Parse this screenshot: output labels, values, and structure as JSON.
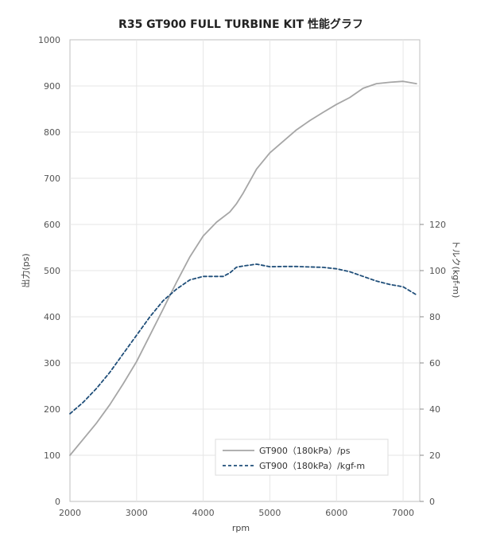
{
  "chart_data": {
    "type": "line",
    "title": "R35 GT900 FULL TURBINE KIT 性能グラフ",
    "xlabel": "rpm",
    "ylabel_left": "出力(ps)",
    "ylabel_right": "トルク(kgf-m)",
    "xlim": [
      2000,
      7250
    ],
    "ylim_left": [
      0,
      1000
    ],
    "ylim_right": [
      0,
      200
    ],
    "x_ticks": [
      "2000",
      "3000",
      "4000",
      "5000",
      "6000",
      "7000"
    ],
    "y_ticks_left": [
      "0",
      "100",
      "200",
      "300",
      "400",
      "500",
      "600",
      "700",
      "800",
      "900",
      "1000"
    ],
    "y_ticks_right": [
      "0",
      "20",
      "40",
      "60",
      "80",
      "100",
      "120"
    ],
    "grid": true,
    "legend_position": "bottom-right",
    "series": [
      {
        "name": "GT900（180kPa）/ps",
        "axis": "left",
        "color": "#a6a6a6",
        "style": "solid",
        "x": [
          2000,
          2200,
          2400,
          2600,
          2800,
          3000,
          3200,
          3400,
          3600,
          3800,
          4000,
          4200,
          4400,
          4500,
          4600,
          4800,
          5000,
          5200,
          5400,
          5600,
          5800,
          6000,
          6200,
          6400,
          6600,
          6800,
          7000,
          7200
        ],
        "values": [
          100,
          135,
          170,
          210,
          255,
          303,
          360,
          417,
          475,
          530,
          575,
          605,
          627,
          645,
          668,
          720,
          755,
          780,
          805,
          825,
          843,
          860,
          875,
          895,
          905,
          908,
          910,
          905
        ]
      },
      {
        "name": "GT900（180kPa）/kgf-m",
        "axis": "right",
        "color": "#1f4e79",
        "style": "dashed",
        "x": [
          2000,
          2200,
          2400,
          2600,
          2800,
          3000,
          3200,
          3400,
          3600,
          3800,
          4000,
          4200,
          4300,
          4400,
          4500,
          4600,
          4800,
          5000,
          5200,
          5400,
          5600,
          5800,
          6000,
          6200,
          6400,
          6600,
          6800,
          7000,
          7200
        ],
        "values": [
          38,
          43,
          49,
          56,
          64,
          72,
          80,
          87,
          92,
          96,
          97.5,
          97.5,
          97.5,
          99,
          101.5,
          102,
          102.8,
          101.7,
          101.8,
          101.8,
          101.6,
          101.4,
          100.8,
          99.5,
          97.5,
          95.5,
          94,
          93,
          89.5
        ]
      }
    ]
  }
}
